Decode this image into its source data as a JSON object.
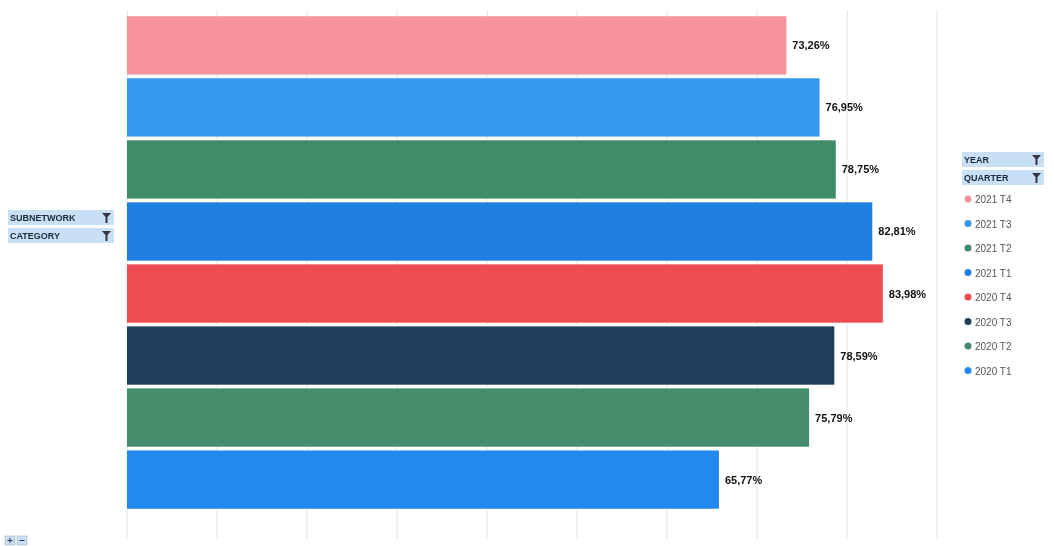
{
  "chart_data": {
    "type": "bar",
    "orientation": "horizontal",
    "categories": [
      null,
      null,
      null,
      null,
      null,
      null,
      null,
      null
    ],
    "values": [
      73.26,
      76.95,
      78.75,
      82.81,
      83.98,
      78.59,
      75.79,
      65.77
    ],
    "colors": [
      "#f7919b",
      "#3399ee",
      "#408b68",
      "#1f80e2",
      "#ee4b52",
      "#1f3e5e",
      "#448c6c",
      "#2289ee"
    ],
    "value_labels": [
      "73,26%",
      "76,95%",
      "78,75%",
      "82,81%",
      "83,98%",
      "78,59%",
      "75,79%",
      "65,77%"
    ],
    "xlim": [
      0,
      90
    ],
    "xticks": [
      {
        "value": 0,
        "label": null
      },
      {
        "value": 10,
        "label": null
      },
      {
        "value": 20,
        "label": null
      },
      {
        "value": 30,
        "label": null
      },
      {
        "value": 40,
        "label": null
      },
      {
        "value": 50,
        "label": null
      },
      {
        "value": 60,
        "label": null
      },
      {
        "value": 70,
        "label": null
      },
      {
        "value": 80,
        "label": null
      },
      {
        "value": 90,
        "label": null
      }
    ],
    "grid": "x",
    "annotations": [
      "SUBNETWORK",
      "CATEGORY",
      "YEAR",
      "QUARTER",
      "2021 T4",
      "2021 T3",
      "2021 T2",
      "2021 T1",
      "2020 T4",
      "2020 T3",
      "2020 T2",
      "2020 T1"
    ]
  }
}
